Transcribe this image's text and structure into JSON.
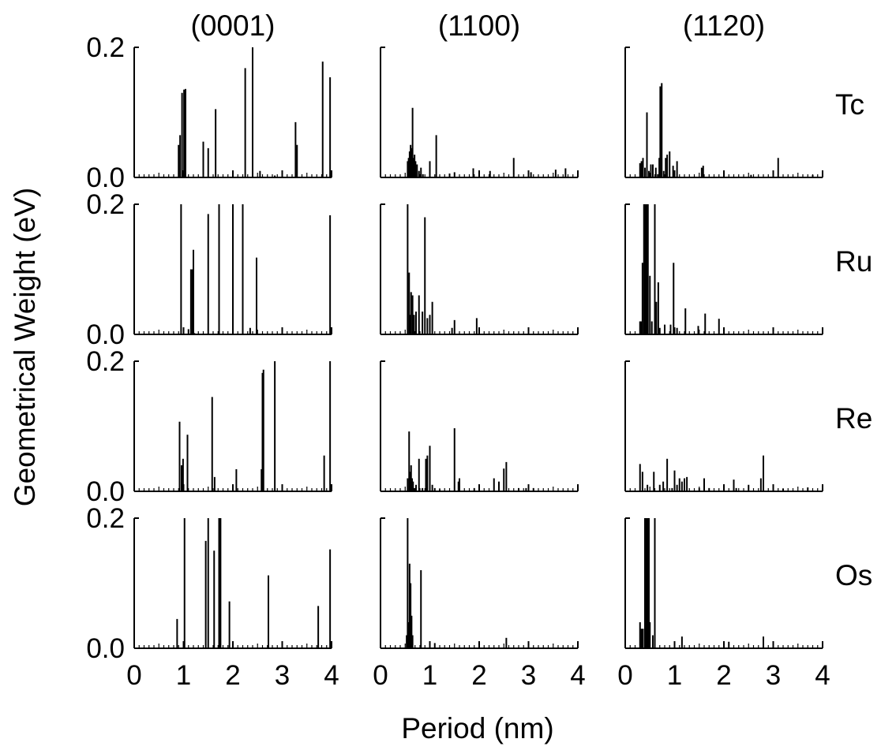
{
  "figure": {
    "ylabel": "Geometrical Weight (eV)",
    "xlabel": "Period (nm)"
  },
  "chart_data": {
    "type": "bar",
    "columns": [
      "(0001)",
      "(1100)",
      "(1120)"
    ],
    "rows": [
      "Tc",
      "Ru",
      "Re",
      "Os"
    ],
    "xlim": [
      0,
      4
    ],
    "ylim": [
      0,
      0.2
    ],
    "x_ticks": [
      "0",
      "1",
      "2",
      "3",
      "4"
    ],
    "y_ticks": [
      "0.0",
      "0.2"
    ],
    "grid": false,
    "panels": [
      [
        {
          "x": [
            0.9,
            0.93,
            0.97,
            1.01,
            1.04,
            1.4,
            1.5,
            1.65,
            2.25,
            2.4,
            2.55,
            2.85,
            3.27,
            3.3,
            3.82,
            3.97
          ],
          "y": [
            0.05,
            0.065,
            0.13,
            0.135,
            0.136,
            0.055,
            0.045,
            0.105,
            0.168,
            0.2,
            0.01,
            0.003,
            0.085,
            0.05,
            0.178,
            0.154
          ]
        },
        {
          "x": [
            0.55,
            0.57,
            0.59,
            0.61,
            0.63,
            0.65,
            0.67,
            0.69,
            0.71,
            0.74,
            0.78,
            0.82,
            0.86,
            1.0,
            1.13,
            1.4,
            1.5,
            1.88,
            2.22,
            2.7,
            3.05,
            3.55,
            3.75
          ],
          "y": [
            0.025,
            0.03,
            0.04,
            0.05,
            0.045,
            0.107,
            0.03,
            0.035,
            0.025,
            0.02,
            0.01,
            0.015,
            0.005,
            0.025,
            0.065,
            0.006,
            0.008,
            0.014,
            0.01,
            0.03,
            0.008,
            0.012,
            0.014
          ]
        },
        {
          "x": [
            0.3,
            0.33,
            0.36,
            0.4,
            0.44,
            0.48,
            0.52,
            0.56,
            0.62,
            0.66,
            0.69,
            0.71,
            0.74,
            0.78,
            0.82,
            0.85,
            0.9,
            0.97,
            1.05,
            1.55,
            1.58,
            2.55,
            3.1,
            3.8
          ],
          "y": [
            0.022,
            0.025,
            0.03,
            0.015,
            0.1,
            0.01,
            0.02,
            0.02,
            0.015,
            0.005,
            0.03,
            0.14,
            0.145,
            0.01,
            0.03,
            0.035,
            0.04,
            0.018,
            0.025,
            0.015,
            0.018,
            0.004,
            0.03,
            0.004
          ]
        }
      ],
      [
        {
          "x": [
            0.95,
            1.1,
            1.15,
            1.18,
            1.2,
            1.22,
            1.5,
            1.72,
            2.0,
            2.2,
            2.35,
            2.48,
            3.97
          ],
          "y": [
            0.2,
            0.008,
            0.1,
            0.1,
            0.13,
            0.002,
            0.185,
            0.2,
            0.2,
            0.2,
            0.01,
            0.118,
            0.183
          ]
        },
        {
          "x": [
            0.55,
            0.58,
            0.6,
            0.62,
            0.65,
            0.68,
            0.72,
            0.78,
            0.85,
            0.9,
            0.95,
            1.0,
            1.05,
            1.45,
            1.5,
            1.95
          ],
          "y": [
            0.2,
            0.095,
            0.03,
            0.065,
            0.06,
            0.03,
            0.035,
            0.06,
            0.035,
            0.18,
            0.025,
            0.03,
            0.05,
            0.01,
            0.022,
            0.025
          ]
        },
        {
          "x": [
            0.3,
            0.32,
            0.35,
            0.38,
            0.4,
            0.42,
            0.44,
            0.46,
            0.5,
            0.54,
            0.6,
            0.63,
            0.67,
            0.7,
            0.8,
            0.92,
            0.98,
            1.05,
            1.22,
            1.48,
            1.62,
            1.9
          ],
          "y": [
            0.02,
            0.02,
            0.11,
            0.2,
            0.2,
            0.2,
            0.2,
            0.2,
            0.09,
            0.02,
            0.2,
            0.05,
            0.08,
            0.01,
            0.015,
            0.015,
            0.11,
            0.01,
            0.04,
            0.013,
            0.032,
            0.024
          ]
        }
      ],
      [
        {
          "x": [
            0.92,
            0.96,
            0.99,
            1.08,
            1.58,
            1.63,
            2.07,
            2.58,
            2.6,
            2.62,
            2.85,
            3.85,
            3.97
          ],
          "y": [
            0.107,
            0.04,
            0.05,
            0.087,
            0.145,
            0.022,
            0.034,
            0.034,
            0.182,
            0.187,
            0.2,
            0.055,
            0.2
          ]
        },
        {
          "x": [
            0.55,
            0.58,
            0.6,
            0.62,
            0.64,
            0.66,
            0.68,
            0.72,
            0.78,
            0.85,
            0.92,
            0.95,
            1.0,
            1.05,
            1.1,
            1.2,
            1.5,
            1.58,
            1.6,
            1.9,
            2.3,
            2.4,
            2.5,
            2.55,
            2.8,
            2.95,
            3.1
          ],
          "y": [
            0.02,
            0.092,
            0.03,
            0.04,
            0.02,
            0.015,
            0.005,
            0.01,
            0.05,
            0.005,
            0.05,
            0.055,
            0.07,
            0.01,
            0.005,
            0.003,
            0.097,
            0.015,
            0.02,
            0.005,
            0.02,
            0.015,
            0.035,
            0.045,
            0.005,
            0.005,
            0.005
          ]
        },
        {
          "x": [
            0.3,
            0.35,
            0.45,
            0.58,
            0.7,
            0.77,
            0.85,
            0.95,
            1.0,
            1.05,
            1.1,
            1.15,
            1.2,
            1.25,
            1.5,
            1.6,
            1.7,
            2.0,
            2.2,
            2.25,
            2.5,
            2.75,
            2.8,
            3.2,
            3.7
          ],
          "y": [
            0.042,
            0.03,
            0.01,
            0.03,
            0.01,
            0.015,
            0.05,
            0.005,
            0.032,
            0.01,
            0.02,
            0.015,
            0.02,
            0.022,
            0.005,
            0.02,
            0.005,
            0.008,
            0.018,
            0.005,
            0.01,
            0.02,
            0.055,
            0.004,
            0.006
          ]
        }
      ],
      [
        {
          "x": [
            0.87,
            1.02,
            1.45,
            1.5,
            1.62,
            1.72,
            1.75,
            1.93,
            2.72,
            3.73,
            3.97
          ],
          "y": [
            0.045,
            0.2,
            0.165,
            0.2,
            0.15,
            0.2,
            0.2,
            0.072,
            0.112,
            0.065,
            0.152
          ]
        },
        {
          "x": [
            0.53,
            0.55,
            0.57,
            0.59,
            0.61,
            0.63,
            0.65,
            0.82,
            1.1,
            2.55
          ],
          "y": [
            0.02,
            0.2,
            0.04,
            0.13,
            0.1,
            0.05,
            0.02,
            0.12,
            0.008,
            0.016
          ]
        },
        {
          "x": [
            0.3,
            0.33,
            0.36,
            0.4,
            0.42,
            0.44,
            0.46,
            0.48,
            0.5,
            0.56,
            0.6,
            1.15,
            2.1,
            2.8
          ],
          "y": [
            0.04,
            0.03,
            0.03,
            0.2,
            0.2,
            0.2,
            0.2,
            0.2,
            0.04,
            0.02,
            0.2,
            0.018,
            0.01,
            0.018
          ]
        }
      ]
    ]
  }
}
